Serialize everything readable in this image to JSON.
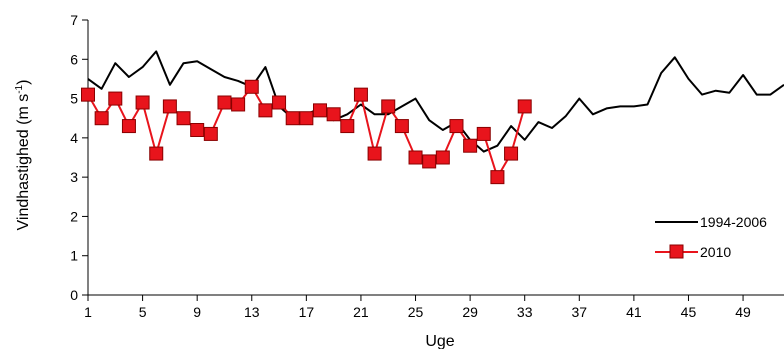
{
  "chart_data": {
    "type": "line",
    "xlabel": "Uge",
    "ylabel_main": "Vindhastighed (m s",
    "ylabel_sup": "-1",
    "ylabel_close": ")",
    "xlim": [
      1,
      52
    ],
    "ylim": [
      0,
      7
    ],
    "xticks": [
      1,
      5,
      9,
      13,
      17,
      21,
      25,
      29,
      33,
      37,
      41,
      45,
      49
    ],
    "yticks": [
      0,
      1,
      2,
      3,
      4,
      5,
      6,
      7
    ],
    "grid": false,
    "legend_position": "right",
    "series": [
      {
        "name": "1994-2006",
        "color": "#000000",
        "marker": "none",
        "x": [
          1,
          2,
          3,
          4,
          5,
          6,
          7,
          8,
          9,
          10,
          11,
          12,
          13,
          14,
          15,
          16,
          17,
          18,
          19,
          20,
          21,
          22,
          23,
          24,
          25,
          26,
          27,
          28,
          29,
          30,
          31,
          32,
          33,
          34,
          35,
          36,
          37,
          38,
          39,
          40,
          41,
          42,
          43,
          44,
          45,
          46,
          47,
          48,
          49,
          50,
          51,
          52
        ],
        "y": [
          5.5,
          5.25,
          5.9,
          5.55,
          5.8,
          6.2,
          5.35,
          5.9,
          5.95,
          5.75,
          5.55,
          5.45,
          5.3,
          5.8,
          4.8,
          4.5,
          4.6,
          4.75,
          4.45,
          4.6,
          4.85,
          4.6,
          4.6,
          4.8,
          5.0,
          4.45,
          4.2,
          4.4,
          3.95,
          3.65,
          3.8,
          4.3,
          3.95,
          4.4,
          4.25,
          4.55,
          5.0,
          4.6,
          4.75,
          4.8,
          4.8,
          4.85,
          5.65,
          6.05,
          5.5,
          5.1,
          5.2,
          5.15,
          5.6,
          5.1,
          5.1,
          5.35
        ]
      },
      {
        "name": "2010",
        "color": "#e8141c",
        "marker": "square",
        "x": [
          1,
          2,
          3,
          4,
          5,
          6,
          7,
          8,
          9,
          10,
          11,
          12,
          13,
          14,
          15,
          16,
          17,
          18,
          19,
          20,
          21,
          22,
          23,
          24,
          25,
          26,
          27,
          28,
          29,
          30,
          31,
          32,
          33
        ],
        "y": [
          5.1,
          4.5,
          5.0,
          4.3,
          4.9,
          3.6,
          4.8,
          4.5,
          4.2,
          4.1,
          4.9,
          4.85,
          5.3,
          4.7,
          4.9,
          4.5,
          4.5,
          4.7,
          4.6,
          4.3,
          5.1,
          3.6,
          4.8,
          4.3,
          3.5,
          3.4,
          3.5,
          4.3,
          3.8,
          4.1,
          3.0,
          3.6,
          4.8
        ]
      }
    ]
  }
}
